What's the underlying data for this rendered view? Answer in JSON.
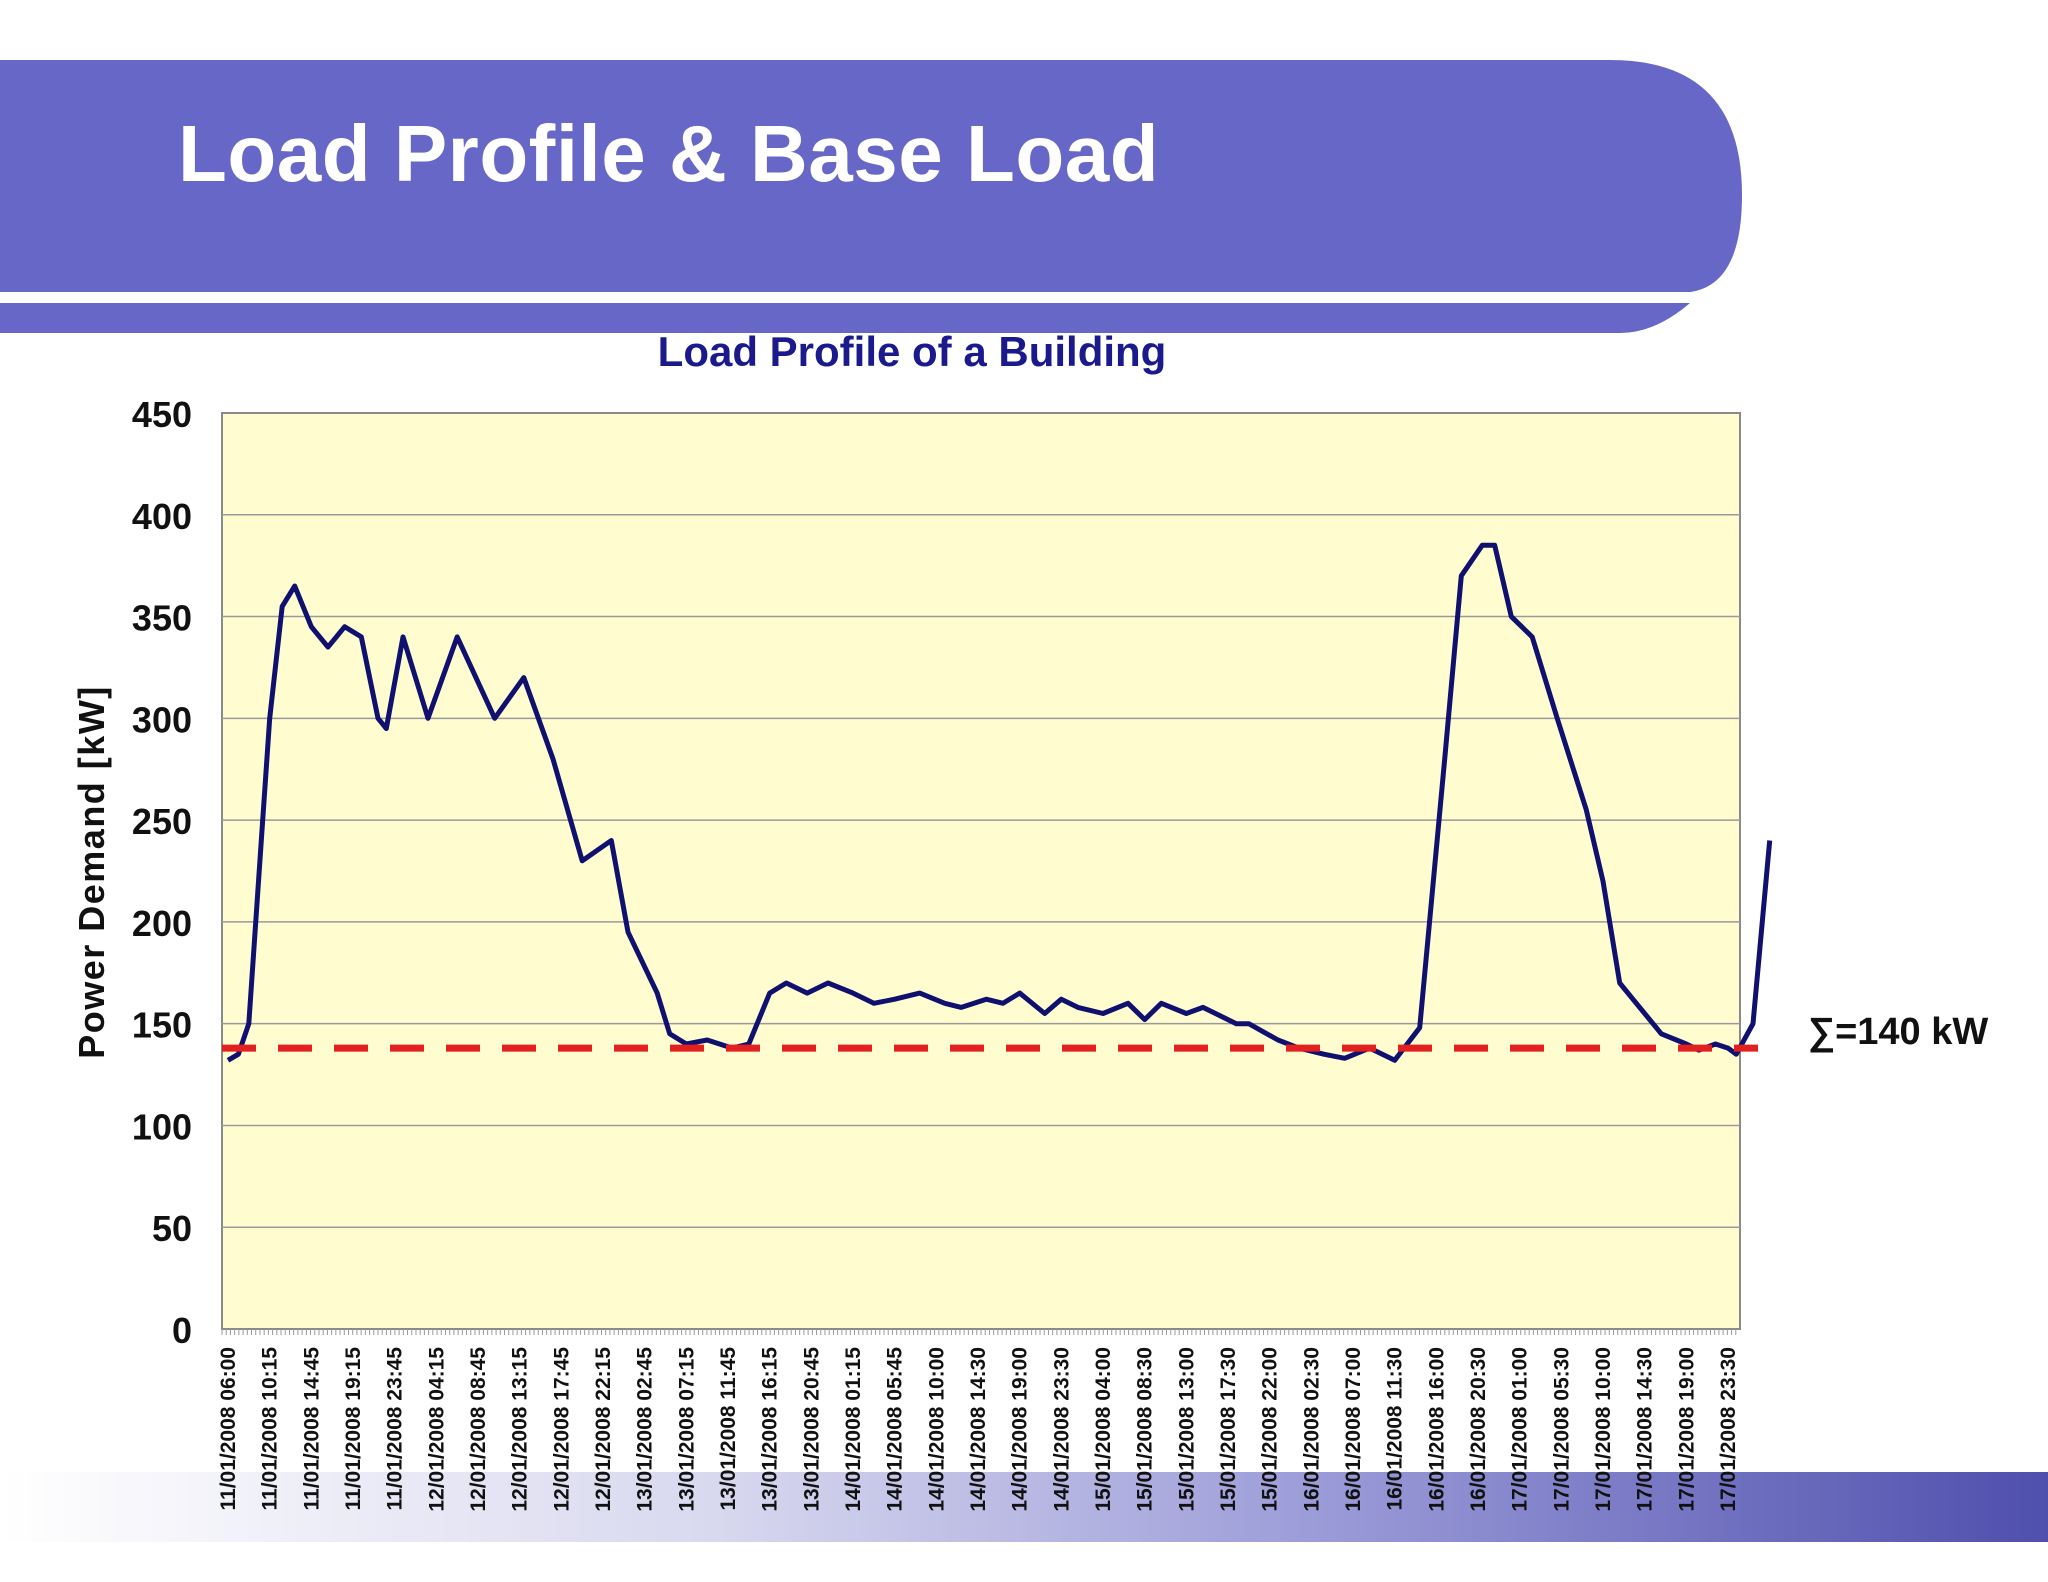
{
  "slide": {
    "title": "Load Profile & Base Load",
    "banner_color": "#6767c8"
  },
  "annotation": {
    "label": "∑=140 kW"
  },
  "chart_data": {
    "type": "line",
    "title": "Load Profile of a Building",
    "xlabel": "",
    "ylabel": "Power Demand  [kW]",
    "ylim": [
      0,
      450
    ],
    "yticks": [
      0,
      50,
      100,
      150,
      200,
      250,
      300,
      350,
      400,
      450
    ],
    "grid": true,
    "legend": "none",
    "plot_background": "#fffdd0",
    "x_tick_labels": [
      "11/01/2008 06:00",
      "11/01/2008 10:15",
      "11/01/2008 14:45",
      "11/01/2008 19:15",
      "11/01/2008 23:45",
      "12/01/2008 04:15",
      "12/01/2008 08:45",
      "12/01/2008 13:15",
      "12/01/2008 17:45",
      "12/01/2008 22:15",
      "13/01/2008 02:45",
      "13/01/2008 07:15",
      "13/01/2008 11:45",
      "13/01/2008 16:15",
      "13/01/2008 20:45",
      "14/01/2008 01:15",
      "14/01/2008 05:45",
      "14/01/2008 10:00",
      "14/01/2008 14:30",
      "14/01/2008 19:00",
      "14/01/2008 23:30",
      "15/01/2008 04:00",
      "15/01/2008 08:30",
      "15/01/2008 13:00",
      "15/01/2008 17:30",
      "15/01/2008 22:00",
      "16/01/2008 02:30",
      "16/01/2008 07:00",
      "16/01/2008 11:30",
      "16/01/2008 16:00",
      "16/01/2008 20:30",
      "17/01/2008 01:00",
      "17/01/2008 05:30",
      "17/01/2008 10:00",
      "17/01/2008 14:30",
      "17/01/2008 19:00",
      "17/01/2008 23:30"
    ],
    "series": [
      {
        "color": "#10106e",
        "x_index": [
          0,
          0.25,
          0.5,
          0.8,
          1.0,
          1.3,
          1.6,
          2.0,
          2.4,
          2.8,
          3.2,
          3.6,
          3.8,
          4.2,
          4.8,
          5.5,
          6.4,
          7.1,
          7.8,
          8.5,
          9.2,
          9.6,
          10.3,
          10.6,
          11.0,
          11.5,
          12.1,
          12.5,
          13.0,
          13.4,
          13.9,
          14.4,
          15.0,
          15.5,
          16.0,
          16.6,
          17.2,
          17.6,
          18.2,
          18.6,
          19.0,
          19.6,
          20.0,
          20.4,
          21.0,
          21.6,
          22.0,
          22.4,
          23.0,
          23.4,
          24.2,
          24.5,
          25.2,
          25.7,
          26.3,
          26.8,
          27.4,
          28.0,
          28.6,
          29.2,
          29.6,
          30.1,
          30.4,
          30.8,
          31.3,
          31.9,
          32.6,
          33.0,
          33.4,
          33.8,
          34.4,
          35.0,
          35.3,
          35.7,
          36.0,
          36.2,
          36.6,
          37.0
        ],
        "values": [
          132,
          135,
          150,
          240,
          300,
          355,
          365,
          345,
          335,
          345,
          340,
          300,
          295,
          340,
          300,
          340,
          300,
          320,
          280,
          230,
          240,
          195,
          165,
          145,
          140,
          142,
          138,
          140,
          165,
          170,
          165,
          170,
          165,
          160,
          162,
          165,
          160,
          158,
          162,
          160,
          165,
          155,
          162,
          158,
          155,
          160,
          152,
          160,
          155,
          158,
          150,
          150,
          142,
          138,
          135,
          133,
          138,
          132,
          148,
          280,
          370,
          385,
          385,
          350,
          340,
          300,
          255,
          220,
          170,
          160,
          145,
          140,
          137,
          140,
          138,
          135,
          150,
          240
        ],
        "note_shape": "reading"
      }
    ],
    "reference_line": {
      "value": 138,
      "style": "dashed",
      "color": "#e32020"
    }
  }
}
